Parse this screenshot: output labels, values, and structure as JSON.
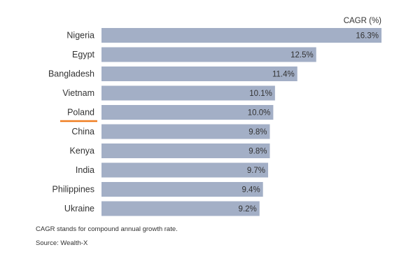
{
  "chart_data": {
    "type": "bar",
    "orientation": "horizontal",
    "series_label": "CAGR (%)",
    "categories": [
      "Nigeria",
      "Egypt",
      "Bangladesh",
      "Vietnam",
      "Poland",
      "China",
      "Kenya",
      "India",
      "Philippines",
      "Ukraine"
    ],
    "values": [
      16.3,
      12.5,
      11.4,
      10.1,
      10.0,
      9.8,
      9.8,
      9.7,
      9.4,
      9.2
    ],
    "value_labels": [
      "16.3%",
      "12.5%",
      "11.4%",
      "10.1%",
      "10.0%",
      "9.8%",
      "9.8%",
      "9.7%",
      "9.4%",
      "9.2%"
    ],
    "highlighted_category": "Poland",
    "xlim": [
      0,
      16.3
    ],
    "grid": false
  },
  "notes": {
    "definition": "CAGR stands for compound annual growth rate.",
    "source": "Source: Wealth-X"
  },
  "colors": {
    "bar": "#a3afc6",
    "highlight_underline": "#f07f22",
    "text": "#333333"
  }
}
